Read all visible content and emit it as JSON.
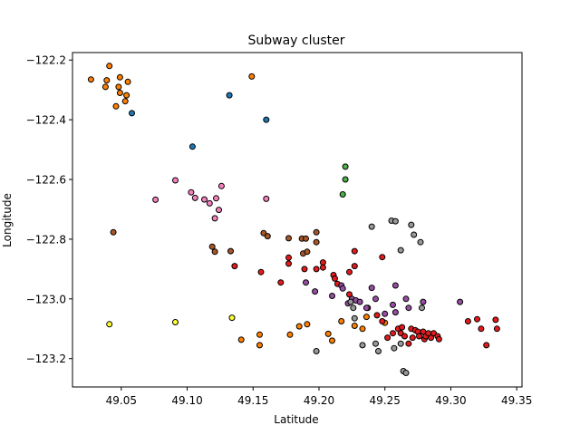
{
  "chart_data": {
    "type": "scatter",
    "title": "Subway cluster",
    "xlabel": "Latitude",
    "ylabel": "Longitude",
    "xlim": [
      49.013,
      49.354
    ],
    "ylim": [
      -123.295,
      -122.175
    ],
    "grid": false,
    "x_ticks": [
      "49.05",
      "49.10",
      "49.15",
      "49.20",
      "49.25",
      "49.30",
      "49.35"
    ],
    "x_tick_values": [
      49.05,
      49.1,
      49.15,
      49.2,
      49.25,
      49.3,
      49.35
    ],
    "y_ticks": [
      "−122.2",
      "−122.4",
      "−122.6",
      "−122.8",
      "−123.0",
      "−123.2"
    ],
    "y_tick_values": [
      -122.2,
      -122.4,
      -122.6,
      -122.8,
      -123.0,
      -123.2
    ],
    "marker_edge_color": "#000000",
    "series": [
      {
        "color": "#ff7f00",
        "points": [
          [
            49.027,
            -122.265
          ],
          [
            49.039,
            -122.268
          ],
          [
            49.041,
            -122.22
          ],
          [
            49.038,
            -122.29
          ],
          [
            49.048,
            -122.29
          ],
          [
            49.049,
            -122.258
          ],
          [
            49.049,
            -122.31
          ],
          [
            49.055,
            -122.273
          ],
          [
            49.053,
            -122.338
          ],
          [
            49.054,
            -122.318
          ],
          [
            49.046,
            -122.355
          ],
          [
            49.149,
            -122.255
          ],
          [
            49.141,
            -123.137
          ],
          [
            49.155,
            -123.12
          ],
          [
            49.155,
            -123.155
          ],
          [
            49.178,
            -123.12
          ],
          [
            49.185,
            -123.092
          ],
          [
            49.191,
            -123.085
          ],
          [
            49.207,
            -123.117
          ],
          [
            49.21,
            -123.14
          ],
          [
            49.217,
            -123.075
          ],
          [
            49.227,
            -123.09
          ],
          [
            49.233,
            -123.1
          ],
          [
            49.236,
            -123.06
          ],
          [
            49.25,
            -123.08
          ]
        ]
      },
      {
        "color": "#1f78b4",
        "points": [
          [
            49.058,
            -122.378
          ],
          [
            49.132,
            -122.318
          ],
          [
            49.16,
            -122.4
          ],
          [
            49.104,
            -122.49
          ]
        ]
      },
      {
        "color": "#f781bf",
        "points": [
          [
            49.091,
            -122.603
          ],
          [
            49.076,
            -122.668
          ],
          [
            49.103,
            -122.643
          ],
          [
            49.106,
            -122.662
          ],
          [
            49.113,
            -122.667
          ],
          [
            49.117,
            -122.68
          ],
          [
            49.122,
            -122.663
          ],
          [
            49.126,
            -122.622
          ],
          [
            49.124,
            -122.702
          ],
          [
            49.121,
            -122.73
          ],
          [
            49.16,
            -122.665
          ]
        ]
      },
      {
        "color": "#4daf4a",
        "points": [
          [
            49.22,
            -122.557
          ],
          [
            49.22,
            -122.6
          ],
          [
            49.218,
            -122.65
          ]
        ]
      },
      {
        "color": "#a65628",
        "points": [
          [
            49.044,
            -122.777
          ],
          [
            49.119,
            -122.825
          ],
          [
            49.121,
            -122.842
          ],
          [
            49.133,
            -122.84
          ],
          [
            49.158,
            -122.78
          ],
          [
            49.161,
            -122.79
          ],
          [
            49.177,
            -122.797
          ],
          [
            49.187,
            -122.798
          ],
          [
            49.19,
            -122.798
          ],
          [
            49.198,
            -122.777
          ],
          [
            49.198,
            -122.81
          ],
          [
            49.188,
            -122.848
          ],
          [
            49.191,
            -122.842
          ]
        ]
      },
      {
        "color": "#e41a1c",
        "points": [
          [
            49.136,
            -122.89
          ],
          [
            49.156,
            -122.91
          ],
          [
            49.171,
            -122.945
          ],
          [
            49.177,
            -122.862
          ],
          [
            49.177,
            -122.882
          ],
          [
            49.189,
            -122.9
          ],
          [
            49.198,
            -122.9
          ],
          [
            49.203,
            -122.878
          ],
          [
            49.203,
            -122.895
          ],
          [
            49.211,
            -122.92
          ],
          [
            49.212,
            -122.932
          ],
          [
            49.214,
            -122.95
          ],
          [
            49.223,
            -122.91
          ],
          [
            49.227,
            -122.84
          ],
          [
            49.227,
            -122.89
          ],
          [
            49.223,
            -122.985
          ],
          [
            49.237,
            -123.03
          ],
          [
            49.244,
            -123.055
          ],
          [
            49.248,
            -122.86
          ],
          [
            49.248,
            -123.075
          ],
          [
            49.252,
            -123.13
          ],
          [
            49.256,
            -123.115
          ],
          [
            49.26,
            -123.1
          ],
          [
            49.262,
            -123.115
          ],
          [
            49.263,
            -123.095
          ],
          [
            49.265,
            -123.125
          ],
          [
            49.268,
            -123.15
          ],
          [
            49.27,
            -123.1
          ],
          [
            49.271,
            -123.13
          ],
          [
            49.273,
            -123.105
          ],
          [
            49.275,
            -123.11
          ],
          [
            49.276,
            -123.125
          ],
          [
            49.279,
            -123.11
          ],
          [
            49.28,
            -123.135
          ],
          [
            49.281,
            -123.125
          ],
          [
            49.283,
            -123.115
          ],
          [
            49.285,
            -123.13
          ],
          [
            49.287,
            -123.115
          ],
          [
            49.29,
            -123.125
          ],
          [
            49.291,
            -123.135
          ],
          [
            49.313,
            -123.075
          ],
          [
            49.32,
            -123.068
          ],
          [
            49.323,
            -123.1
          ],
          [
            49.327,
            -123.155
          ],
          [
            49.334,
            -123.07
          ],
          [
            49.335,
            -123.1
          ]
        ]
      },
      {
        "color": "#984ea3",
        "points": [
          [
            49.19,
            -122.945
          ],
          [
            49.197,
            -122.975
          ],
          [
            49.21,
            -122.99
          ],
          [
            49.217,
            -122.955
          ],
          [
            49.218,
            -122.965
          ],
          [
            49.222,
            -123.015
          ],
          [
            49.225,
            -123.0
          ],
          [
            49.228,
            -123.005
          ],
          [
            49.231,
            -123.01
          ],
          [
            49.236,
            -123.03
          ],
          [
            49.24,
            -122.963
          ],
          [
            49.243,
            -123.0
          ],
          [
            49.25,
            -123.05
          ],
          [
            49.256,
            -123.02
          ],
          [
            49.258,
            -122.955
          ],
          [
            49.258,
            -123.045
          ],
          [
            49.266,
            -123.0
          ],
          [
            49.268,
            -123.03
          ],
          [
            49.279,
            -123.01
          ],
          [
            49.307,
            -123.01
          ]
        ]
      },
      {
        "color": "#999999",
        "points": [
          [
            49.198,
            -123.175
          ],
          [
            49.224,
            -123.01
          ],
          [
            49.226,
            -123.03
          ],
          [
            49.227,
            -123.065
          ],
          [
            49.233,
            -123.155
          ],
          [
            49.24,
            -122.758
          ],
          [
            49.243,
            -123.15
          ],
          [
            49.245,
            -123.175
          ],
          [
            49.255,
            -122.738
          ],
          [
            49.258,
            -122.74
          ],
          [
            49.257,
            -123.165
          ],
          [
            49.262,
            -122.837
          ],
          [
            49.262,
            -123.15
          ],
          [
            49.264,
            -123.242
          ],
          [
            49.266,
            -123.248
          ],
          [
            49.27,
            -122.752
          ],
          [
            49.272,
            -122.785
          ],
          [
            49.277,
            -122.81
          ],
          [
            49.278,
            -123.03
          ]
        ]
      },
      {
        "color": "#ffff33",
        "points": [
          [
            49.041,
            -123.085
          ],
          [
            49.091,
            -123.078
          ],
          [
            49.134,
            -123.063
          ]
        ]
      }
    ]
  }
}
